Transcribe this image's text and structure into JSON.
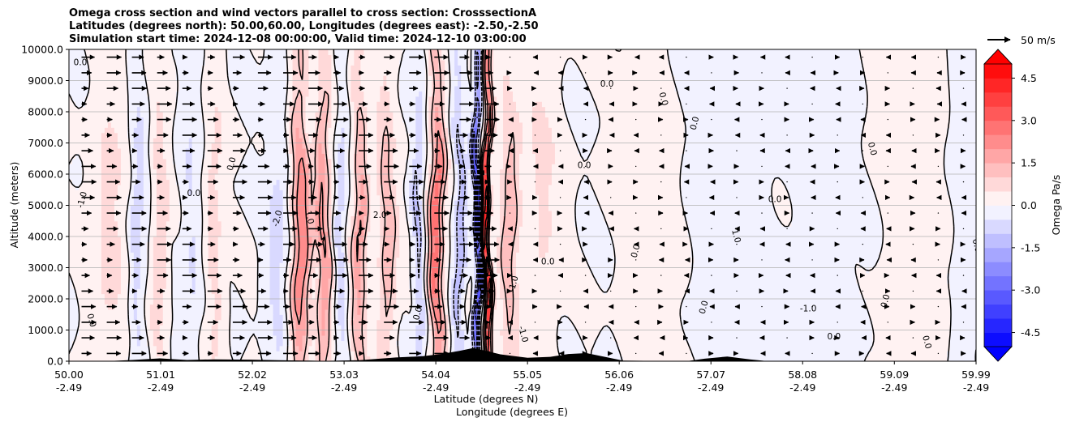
{
  "chart_data": {
    "type": "heatmap",
    "title_lines": [
      "Omega cross section and wind vectors parallel to cross section: CrosssectionA",
      "Latitudes (degrees north): 50.00,60.00, Longitudes (degrees east): -2.50,-2.50",
      "Simulation start time: 2024-12-08 00:00:00, Valid time: 2024-12-10 03:00:00"
    ],
    "ylabel": "Altitude (meters)",
    "xlabel_lines": [
      "Latitude (degrees N)",
      "Longitude (degrees E)"
    ],
    "ylim": [
      0,
      10000
    ],
    "xlim": [
      50.0,
      59.99
    ],
    "y_ticks": [
      "0.0",
      "1000.0",
      "2000.0",
      "3000.0",
      "4000.0",
      "5000.0",
      "6000.0",
      "7000.0",
      "8000.0",
      "9000.0",
      "10000.0"
    ],
    "x_ticks": [
      {
        "lat": "50.00",
        "lon": "-2.49",
        "v": 50.0
      },
      {
        "lat": "51.01",
        "lon": "-2.49",
        "v": 51.01
      },
      {
        "lat": "52.02",
        "lon": "-2.49",
        "v": 52.02
      },
      {
        "lat": "53.03",
        "lon": "-2.49",
        "v": 53.03
      },
      {
        "lat": "54.04",
        "lon": "-2.49",
        "v": 54.04
      },
      {
        "lat": "55.05",
        "lon": "-2.49",
        "v": 55.05
      },
      {
        "lat": "56.06",
        "lon": "-2.49",
        "v": 56.06
      },
      {
        "lat": "57.07",
        "lon": "-2.49",
        "v": 57.07
      },
      {
        "lat": "58.08",
        "lon": "-2.49",
        "v": 58.08
      },
      {
        "lat": "59.09",
        "lon": "-2.49",
        "v": 59.09
      },
      {
        "lat": "59.99",
        "lon": "-2.49",
        "v": 59.99
      }
    ],
    "grid": "horizontal",
    "colorbar": {
      "label": "Omega Pa/s",
      "vmin": -5.0,
      "vmax": 5.0,
      "levels": [
        -5.0,
        -4.5,
        -4.0,
        -3.5,
        -3.0,
        -2.5,
        -2.0,
        -1.5,
        -1.0,
        -0.5,
        0.0,
        0.5,
        1.0,
        1.5,
        2.0,
        2.5,
        3.0,
        3.5,
        4.0,
        4.5,
        5.0
      ],
      "ticks": [
        "-4.5",
        "-3.0",
        "-1.5",
        "0.0",
        "1.5",
        "3.0",
        "4.5"
      ],
      "tick_values": [
        -4.5,
        -3.0,
        -1.5,
        0.0,
        1.5,
        3.0,
        4.5
      ],
      "extend": "both",
      "cmap": "bwr"
    },
    "quiver_key": {
      "label": "50 m/s",
      "speed": 50
    },
    "omega_features": [
      {
        "lat": 50.45,
        "sign": 1,
        "amp": 0.7,
        "width": 0.2
      },
      {
        "lat": 50.75,
        "sign": -1,
        "amp": 0.9,
        "width": 0.08
      },
      {
        "lat": 51.0,
        "sign": 1,
        "amp": 1.0,
        "width": 0.08
      },
      {
        "lat": 51.35,
        "sign": -1,
        "amp": 0.6,
        "width": 0.1
      },
      {
        "lat": 51.6,
        "sign": 1,
        "amp": 0.8,
        "width": 0.1
      },
      {
        "lat": 52.3,
        "sign": -1,
        "amp": 0.7,
        "width": 0.12
      },
      {
        "lat": 52.55,
        "sign": 1,
        "amp": 2.6,
        "width": 0.1
      },
      {
        "lat": 52.8,
        "sign": 1,
        "amp": 2.2,
        "width": 0.08
      },
      {
        "lat": 53.0,
        "sign": -1,
        "amp": 0.9,
        "width": 0.06
      },
      {
        "lat": 53.2,
        "sign": 1,
        "amp": 2.0,
        "width": 0.08
      },
      {
        "lat": 53.5,
        "sign": 1,
        "amp": 1.4,
        "width": 0.1
      },
      {
        "lat": 53.85,
        "sign": -1,
        "amp": 1.2,
        "width": 0.06
      },
      {
        "lat": 54.05,
        "sign": 1,
        "amp": 3.0,
        "width": 0.08
      },
      {
        "lat": 54.3,
        "sign": -1,
        "amp": 1.5,
        "width": 0.06
      },
      {
        "lat": 54.5,
        "sign": -1,
        "amp": 4.8,
        "width": 0.035
      },
      {
        "lat": 54.6,
        "sign": 1,
        "amp": 5.2,
        "width": 0.04
      },
      {
        "lat": 54.85,
        "sign": 1,
        "amp": 1.4,
        "width": 0.1
      },
      {
        "lat": 55.2,
        "sign": 1,
        "amp": 0.6,
        "width": 0.2
      },
      {
        "lat": 56.4,
        "sign": 1,
        "amp": 0.3,
        "width": 0.3
      },
      {
        "lat": 57.3,
        "sign": -1,
        "amp": 0.35,
        "width": 0.4
      },
      {
        "lat": 58.3,
        "sign": -1,
        "amp": 0.3,
        "width": 0.4
      },
      {
        "lat": 59.3,
        "sign": 1,
        "amp": 0.3,
        "width": 0.4
      },
      {
        "lat": 59.85,
        "sign": -1,
        "amp": 0.4,
        "width": 0.15
      }
    ],
    "contour_label_values": [
      "0.0",
      "-1.0",
      "1.0",
      "2.0",
      "-2.0",
      "0.0",
      "0.0",
      "0.0",
      "1.0",
      "-1.0",
      "0.0",
      "0.0",
      "0.0",
      "0.0",
      "0.0",
      "0.0",
      "-1.0",
      "0.0",
      "0.0",
      "0.0",
      "0.0",
      "0.0",
      "0.0",
      "-1.0",
      "0.0",
      "0.0"
    ],
    "terrain": [
      {
        "lat": 50.0,
        "h": 0
      },
      {
        "lat": 50.4,
        "h": 0
      },
      {
        "lat": 50.55,
        "h": 20
      },
      {
        "lat": 50.7,
        "h": 40
      },
      {
        "lat": 51.0,
        "h": 90
      },
      {
        "lat": 51.3,
        "h": 40
      },
      {
        "lat": 51.6,
        "h": 60
      },
      {
        "lat": 52.0,
        "h": 50
      },
      {
        "lat": 52.3,
        "h": 30
      },
      {
        "lat": 52.6,
        "h": 20
      },
      {
        "lat": 52.8,
        "h": 10
      },
      {
        "lat": 53.2,
        "h": 30
      },
      {
        "lat": 53.6,
        "h": 120
      },
      {
        "lat": 53.9,
        "h": 160
      },
      {
        "lat": 54.1,
        "h": 230
      },
      {
        "lat": 54.3,
        "h": 330
      },
      {
        "lat": 54.45,
        "h": 420
      },
      {
        "lat": 54.55,
        "h": 360
      },
      {
        "lat": 54.75,
        "h": 220
      },
      {
        "lat": 55.05,
        "h": 110
      },
      {
        "lat": 55.3,
        "h": 140
      },
      {
        "lat": 55.5,
        "h": 230
      },
      {
        "lat": 55.7,
        "h": 260
      },
      {
        "lat": 55.95,
        "h": 110
      },
      {
        "lat": 56.1,
        "h": 20
      },
      {
        "lat": 56.8,
        "h": 0
      },
      {
        "lat": 57.0,
        "h": 80
      },
      {
        "lat": 57.25,
        "h": 150
      },
      {
        "lat": 57.5,
        "h": 60
      },
      {
        "lat": 57.7,
        "h": 0
      },
      {
        "lat": 59.99,
        "h": 0
      }
    ]
  }
}
